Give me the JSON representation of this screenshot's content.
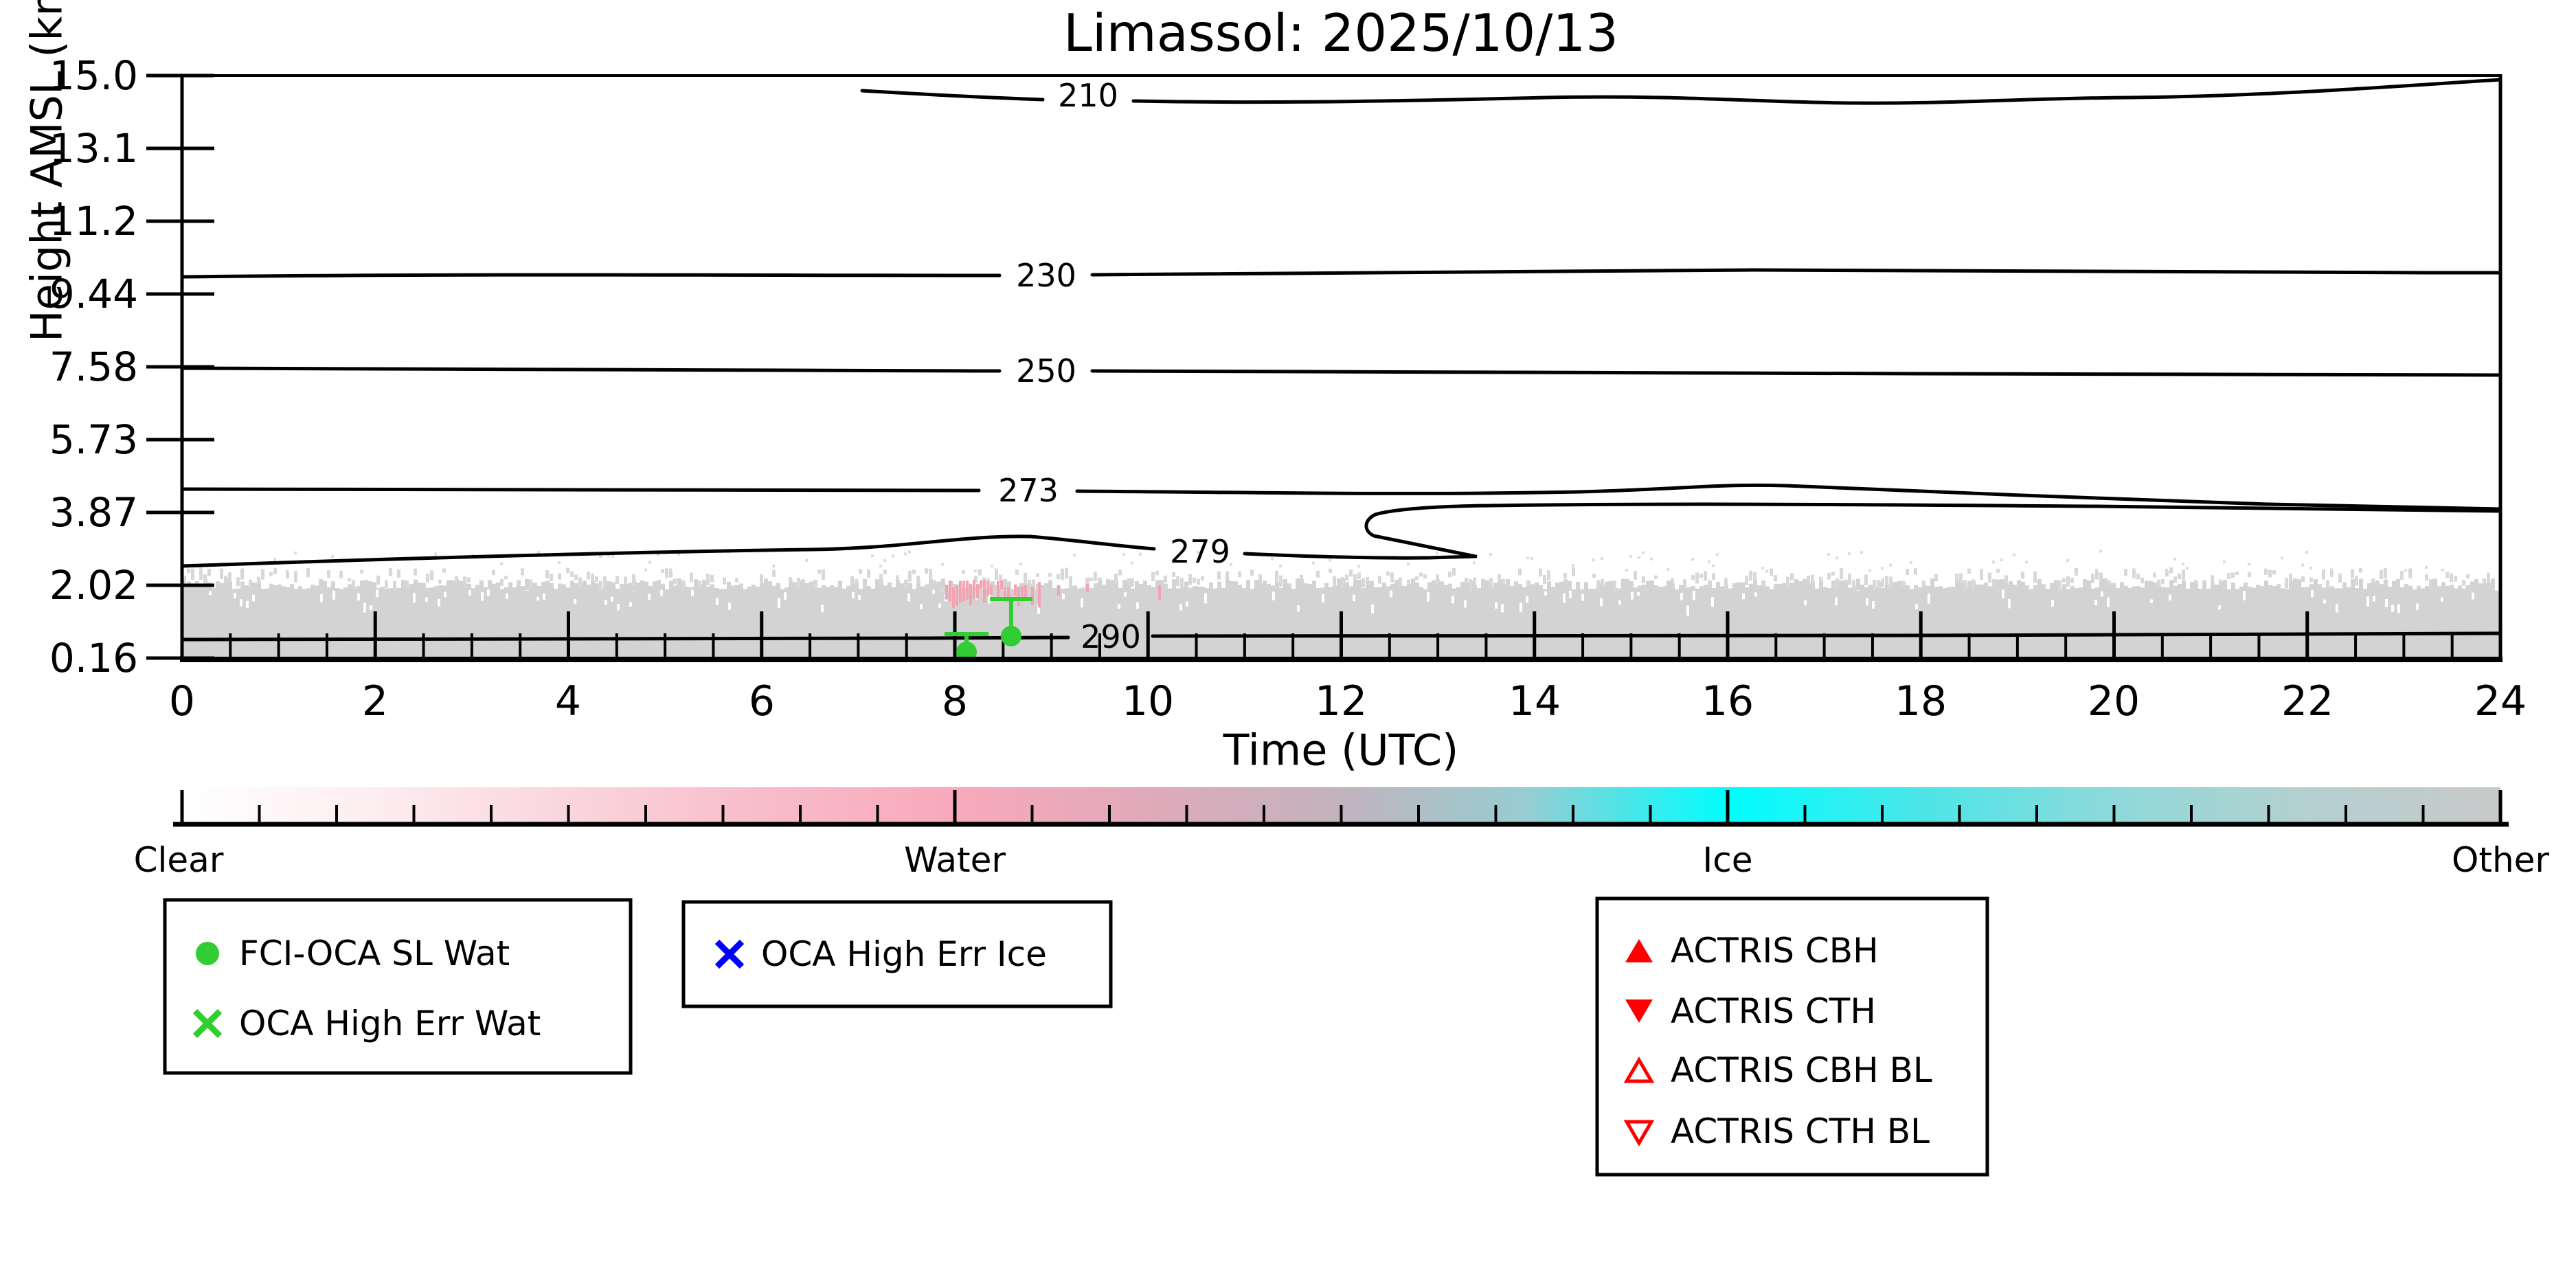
{
  "title": "Limassol: 2025/10/13",
  "axes": {
    "ylabel": "Height AMSL (km)",
    "xlabel": "Time (UTC)",
    "yticks": [
      "15.0",
      "13.1",
      "11.2",
      "9.44",
      "7.58",
      "5.73",
      "3.87",
      "2.02",
      "0.16"
    ],
    "xticks": [
      "0",
      "2",
      "4",
      "6",
      "8",
      "10",
      "12",
      "14",
      "16",
      "18",
      "20",
      "22",
      "24"
    ]
  },
  "contour_labels": [
    "210",
    "230",
    "250",
    "273",
    "279",
    "290"
  ],
  "colorbar": {
    "labels": [
      "Clear",
      "Water",
      "Ice",
      "Other"
    ],
    "colors": {
      "clear": "#ffffff",
      "water": "#f8a9bb",
      "ice": "#00feff",
      "other": "#c9c9c9"
    }
  },
  "legends": {
    "water": {
      "items": [
        {
          "icon": "green-circle-marker",
          "label": "FCI-OCA SL Wat",
          "color": "#32cd32"
        },
        {
          "icon": "green-x-marker",
          "label": "OCA High Err Wat",
          "color": "#32cd32"
        }
      ]
    },
    "ice": {
      "items": [
        {
          "icon": "blue-x-marker",
          "label": "OCA High Err Ice",
          "color": "#0000ff"
        }
      ]
    },
    "actris": {
      "items": [
        {
          "icon": "red-triangle-up-filled-marker",
          "label": "ACTRIS CBH",
          "color": "#ff0000"
        },
        {
          "icon": "red-triangle-down-filled-marker",
          "label": "ACTRIS CTH",
          "color": "#ff0000"
        },
        {
          "icon": "red-triangle-up-open-marker",
          "label": "ACTRIS CBH BL",
          "color": "#ff0000"
        },
        {
          "icon": "red-triangle-down-open-marker",
          "label": "ACTRIS CTH BL",
          "color": "#ff0000"
        }
      ]
    }
  },
  "chart_data": {
    "type": "heatmap",
    "title": "Limassol: 2025/10/13",
    "xlabel": "Time (UTC)",
    "ylabel": "Height AMSL (km)",
    "x_range_utc_h": [
      0,
      24
    ],
    "x_tick_step_h": 2,
    "y_tick_labels_km": [
      15.0,
      13.1,
      11.2,
      9.44,
      7.58,
      5.73,
      3.87,
      2.02,
      0.16
    ],
    "phase_classes": [
      "Clear",
      "Water",
      "Ice",
      "Other"
    ],
    "phase_field": [
      {
        "class": "Other",
        "time_utc_h": [
          0,
          24
        ],
        "height_km": [
          0.16,
          2.0
        ],
        "appearance": "solid light-gray layer with ragged speckled top, present all day"
      },
      {
        "class": "Water",
        "time_utc_h": [
          7.5,
          9.2
        ],
        "height_km": [
          1.7,
          2.2
        ],
        "appearance": "pink speckles at top of gray layer"
      },
      {
        "class": "Clear",
        "time_utc_h": [
          0,
          24
        ],
        "height_km": [
          2.2,
          15.0
        ],
        "appearance": "white background"
      }
    ],
    "temperature_contours_K": [
      {
        "level": 210,
        "approx_height_km": 14.3,
        "time_span_h": [
          7.0,
          24
        ]
      },
      {
        "level": 230,
        "approx_height_km": 9.8,
        "time_span_h": [
          0,
          24
        ]
      },
      {
        "level": 250,
        "approx_height_km": 7.4,
        "time_span_h": [
          0,
          24
        ]
      },
      {
        "level": 273,
        "approx_height_km": 4.4,
        "time_span_h": [
          0,
          24
        ]
      },
      {
        "level": 279,
        "approx_height_km": 2.9,
        "time_span_h": [
          0,
          24
        ]
      },
      {
        "level": 290,
        "approx_height_km": 0.65,
        "time_span_h": [
          0,
          24
        ]
      }
    ],
    "series": [
      {
        "name": "FCI-OCA SL Wat",
        "marker": "green-circle",
        "points": [
          {
            "time_utc_h": 8.1,
            "height_km": 0.33,
            "error_top_km": 0.76
          },
          {
            "time_utc_h": 8.6,
            "height_km": 0.72,
            "error_top_km": 1.62
          }
        ]
      },
      {
        "name": "OCA High Err Wat",
        "marker": "green-x",
        "points": []
      },
      {
        "name": "OCA High Err Ice",
        "marker": "blue-x",
        "points": []
      },
      {
        "name": "ACTRIS CBH",
        "marker": "red-triangle-up-filled",
        "points": []
      },
      {
        "name": "ACTRIS CTH",
        "marker": "red-triangle-down-filled",
        "points": []
      },
      {
        "name": "ACTRIS CBH BL",
        "marker": "red-triangle-up-open",
        "points": []
      },
      {
        "name": "ACTRIS CTH BL",
        "marker": "red-triangle-down-open",
        "points": []
      }
    ],
    "legend_position": "below chart, three boxed legends",
    "grid": false
  }
}
